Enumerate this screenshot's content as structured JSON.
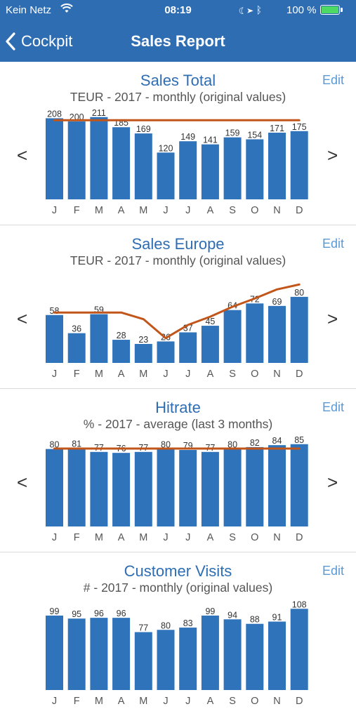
{
  "status_bar": {
    "carrier": "Kein Netz",
    "time": "08:19",
    "battery_percent": "100 %",
    "icons": [
      "wifi-icon",
      "moon-icon",
      "location-icon",
      "bluetooth-icon",
      "battery-icon"
    ]
  },
  "nav": {
    "back_label": "Cockpit",
    "title": "Sales Report"
  },
  "colors": {
    "bar": "#2f73bb",
    "line": "#c2561a",
    "header": "#2f6db3",
    "title": "#2f6db3"
  },
  "sections": [
    {
      "title": "Sales Total",
      "subtitle": "TEUR - 2017 - monthly (original values)",
      "edit_label": "Edit",
      "prev": "<",
      "next": ">"
    },
    {
      "title": "Sales Europe",
      "subtitle": "TEUR - 2017 - monthly (original values)",
      "edit_label": "Edit",
      "prev": "<",
      "next": ">"
    },
    {
      "title": "Hitrate",
      "subtitle": "% - 2017 - average (last 3 months)",
      "edit_label": "Edit",
      "prev": "<",
      "next": ">"
    },
    {
      "title": "Customer Visits",
      "subtitle": "# - 2017 - monthly (original values)",
      "edit_label": "Edit",
      "prev": "<",
      "next": ">"
    }
  ],
  "chart_data": [
    {
      "type": "bar",
      "title": "Sales Total",
      "categories": [
        "J",
        "F",
        "M",
        "A",
        "M",
        "J",
        "J",
        "A",
        "S",
        "O",
        "N",
        "D"
      ],
      "values": [
        208,
        200,
        211,
        185,
        169,
        120,
        149,
        141,
        159,
        154,
        171,
        175
      ],
      "line": [
        203,
        203,
        203,
        203,
        203,
        203,
        203,
        203,
        203,
        203,
        203,
        203
      ],
      "ylim": [
        0,
        216
      ]
    },
    {
      "type": "bar",
      "title": "Sales Europe",
      "categories": [
        "J",
        "F",
        "M",
        "A",
        "M",
        "J",
        "J",
        "A",
        "S",
        "O",
        "N",
        "D"
      ],
      "values": [
        58,
        36,
        59,
        28,
        23,
        26,
        37,
        45,
        64,
        72,
        69,
        80
      ],
      "line": [
        61,
        61,
        61,
        61,
        53,
        30,
        46,
        56,
        68,
        78,
        89,
        95
      ],
      "ylim": [
        0,
        102
      ]
    },
    {
      "type": "bar",
      "title": "Hitrate",
      "categories": [
        "J",
        "F",
        "M",
        "A",
        "M",
        "J",
        "J",
        "A",
        "S",
        "O",
        "N",
        "D"
      ],
      "values": [
        80,
        81,
        77,
        76,
        77,
        80,
        79,
        77,
        80,
        82,
        84,
        85
      ],
      "line": [
        80.5,
        80.5,
        80.5,
        80.5,
        80.5,
        80.5,
        80.5,
        80.5,
        80.5,
        80.5,
        80.5,
        80.5
      ],
      "ylim": [
        0,
        87
      ]
    },
    {
      "type": "bar",
      "title": "Customer Visits",
      "categories": [
        "J",
        "F",
        "M",
        "A",
        "M",
        "J",
        "J",
        "A",
        "S",
        "O",
        "N",
        "D"
      ],
      "values": [
        99,
        95,
        96,
        96,
        77,
        80,
        83,
        99,
        94,
        88,
        91,
        108
      ],
      "ylim": [
        0,
        112
      ]
    }
  ]
}
